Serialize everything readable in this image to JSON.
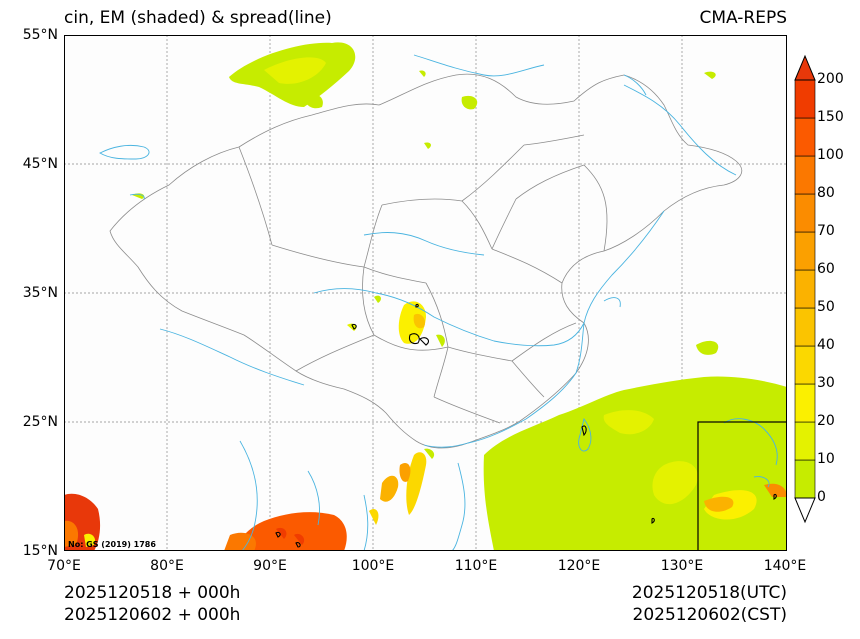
{
  "title_left": "cin, EM (shaded) & spread(line)",
  "title_right": "CMA-REPS",
  "lat_labels": [
    "55°N",
    "45°N",
    "35°N",
    "25°N",
    "15°N"
  ],
  "lon_labels": [
    "70°E",
    "80°E",
    "90°E",
    "100°E",
    "110°E",
    "120°E",
    "130°E",
    "140°E"
  ],
  "colorbar": {
    "levels": [
      "0",
      "10",
      "20",
      "30",
      "40",
      "50",
      "60",
      "70",
      "80",
      "100",
      "150",
      "200"
    ],
    "colors": [
      "#c6ec00",
      "#e4f200",
      "#fbf000",
      "#fbd800",
      "#fbc400",
      "#fbb200",
      "#fba000",
      "#fb8c00",
      "#fb7800",
      "#fb5a00",
      "#f03c00"
    ],
    "over_color": "#e8380a",
    "under_color": "#ffffff"
  },
  "map_note": "No: GS (2019) 1786",
  "footer": {
    "left_line1": "2025120518  +  000h",
    "left_line2": "2025120602  +  000h",
    "right_line1": "2025120518(UTC)",
    "right_line2": "2025120602(CST)"
  }
}
